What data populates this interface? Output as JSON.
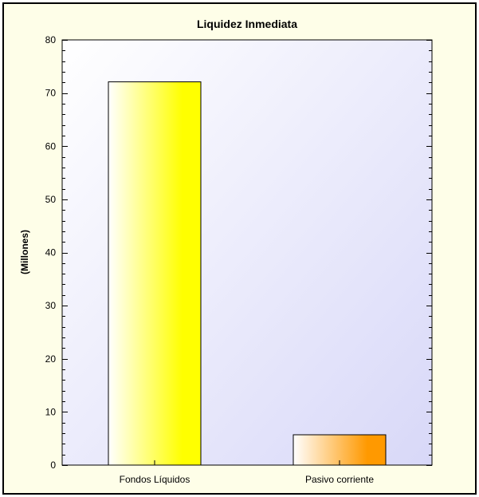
{
  "chart_data": {
    "type": "bar",
    "title": "Liquidez Inmediata",
    "xlabel": "",
    "ylabel": "(Millones)",
    "categories": [
      "Fondos Líquidos",
      "Pasivo corriente"
    ],
    "values": [
      72.1,
      5.7
    ],
    "ylim": [
      0,
      80
    ],
    "yticks": [
      "0",
      "10",
      "20",
      "30",
      "40",
      "50",
      "60",
      "70",
      "80"
    ],
    "grid": false,
    "legend": "none"
  },
  "colors": {
    "background": "#fefee8",
    "plot_gradient_start": "#ffffff",
    "plot_gradient_end": "#d8d8f8",
    "bar_colors": [
      "#ffff00",
      "#ff9900"
    ],
    "bar_light": "#ffffff"
  }
}
